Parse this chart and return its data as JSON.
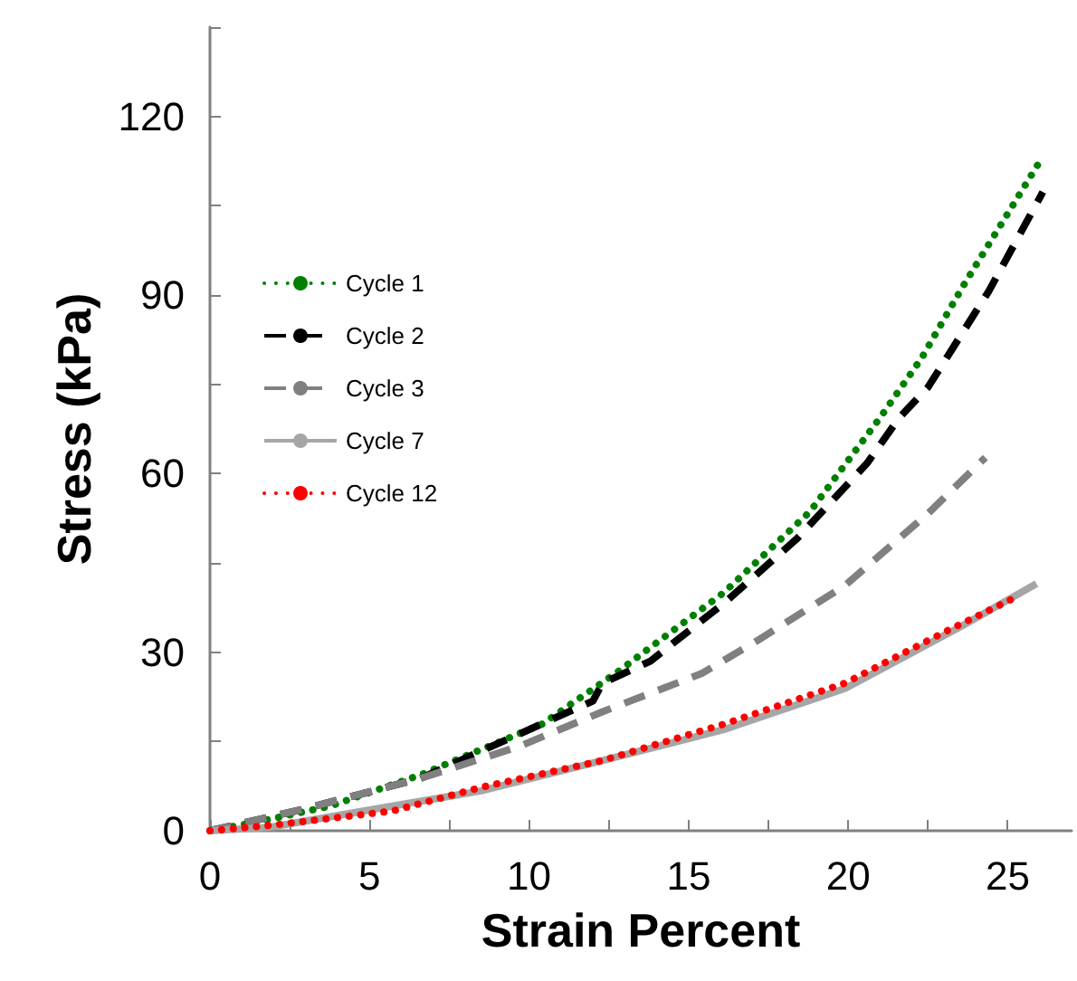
{
  "chart_data": {
    "type": "line",
    "xlabel": "Strain Percent",
    "ylabel": "Stress (kPa)",
    "xlim": [
      0,
      27
    ],
    "xticks": [
      0,
      {
        "value": 2.5,
        "label": null
      },
      5,
      {
        "value": 7.5,
        "label": null
      },
      10,
      {
        "value": 12.5,
        "label": null
      },
      15,
      {
        "value": 17.5,
        "label": null
      },
      20,
      {
        "value": 22.5,
        "label": null
      },
      25
    ],
    "ylim": [
      0,
      135
    ],
    "yticks": [
      0,
      {
        "value": 15,
        "label": null
      },
      30,
      {
        "value": 45,
        "label": null
      },
      60,
      {
        "value": 75,
        "label": null
      },
      90,
      {
        "value": 105,
        "label": null
      },
      120,
      {
        "value": 135,
        "label": null
      }
    ],
    "grid": false,
    "legend": "left",
    "marker": "none",
    "series": [
      {
        "name": "Cycle 1",
        "color": "#008000",
        "line_style": "dotted",
        "x": [
          0,
          1.5,
          3.8,
          6.6,
          10.4,
          12.7,
          16.1,
          18.8,
          21,
          22.3,
          23.6,
          26
        ],
        "values": [
          0,
          1.5,
          4.2,
          9.4,
          17.9,
          26.4,
          40,
          53.6,
          69.4,
          79.4,
          91.5,
          112.4
        ]
      },
      {
        "name": "Cycle 2",
        "color": "#000000",
        "line_style": "dashed",
        "x": [
          0,
          2.9,
          6.6,
          9.5,
          12,
          12.3,
          13.8,
          16.1,
          18.4,
          20.6,
          21.6,
          22.5,
          24.4,
          26.1
        ],
        "values": [
          0,
          3.6,
          8.8,
          15.8,
          21.8,
          24.8,
          28.5,
          38.2,
          49.1,
          61.8,
          69.4,
          74.5,
          90.6,
          107.3
        ]
      },
      {
        "name": "Cycle 3",
        "color": "#808080",
        "line_style": "dashed",
        "x": [
          0,
          2.9,
          6.6,
          9.7,
          12.3,
          15.4,
          17.2,
          19.9,
          22.5,
          24.3
        ],
        "values": [
          0,
          3.6,
          8.8,
          14.2,
          20,
          26.4,
          32.1,
          41.2,
          53.3,
          62.7
        ]
      },
      {
        "name": "Cycle 7",
        "color": "#a6a6a6",
        "line_style": "solid",
        "x": [
          0,
          1.9,
          4.8,
          8.5,
          12.3,
          16.1,
          19.9,
          23.6,
          25.9
        ],
        "values": [
          0,
          0.6,
          3.3,
          6.7,
          11.8,
          17,
          23.9,
          34.5,
          41.5
        ]
      },
      {
        "name": "Cycle 12",
        "color": "#ff0000",
        "line_style": "dotted",
        "x": [
          0,
          1.9,
          5.7,
          8.5,
          12.3,
          16.1,
          19.9,
          23.1,
          25.2
        ],
        "values": [
          0,
          0.9,
          3.3,
          7.3,
          11.8,
          17.9,
          24.8,
          33.6,
          39.1
        ]
      }
    ]
  }
}
